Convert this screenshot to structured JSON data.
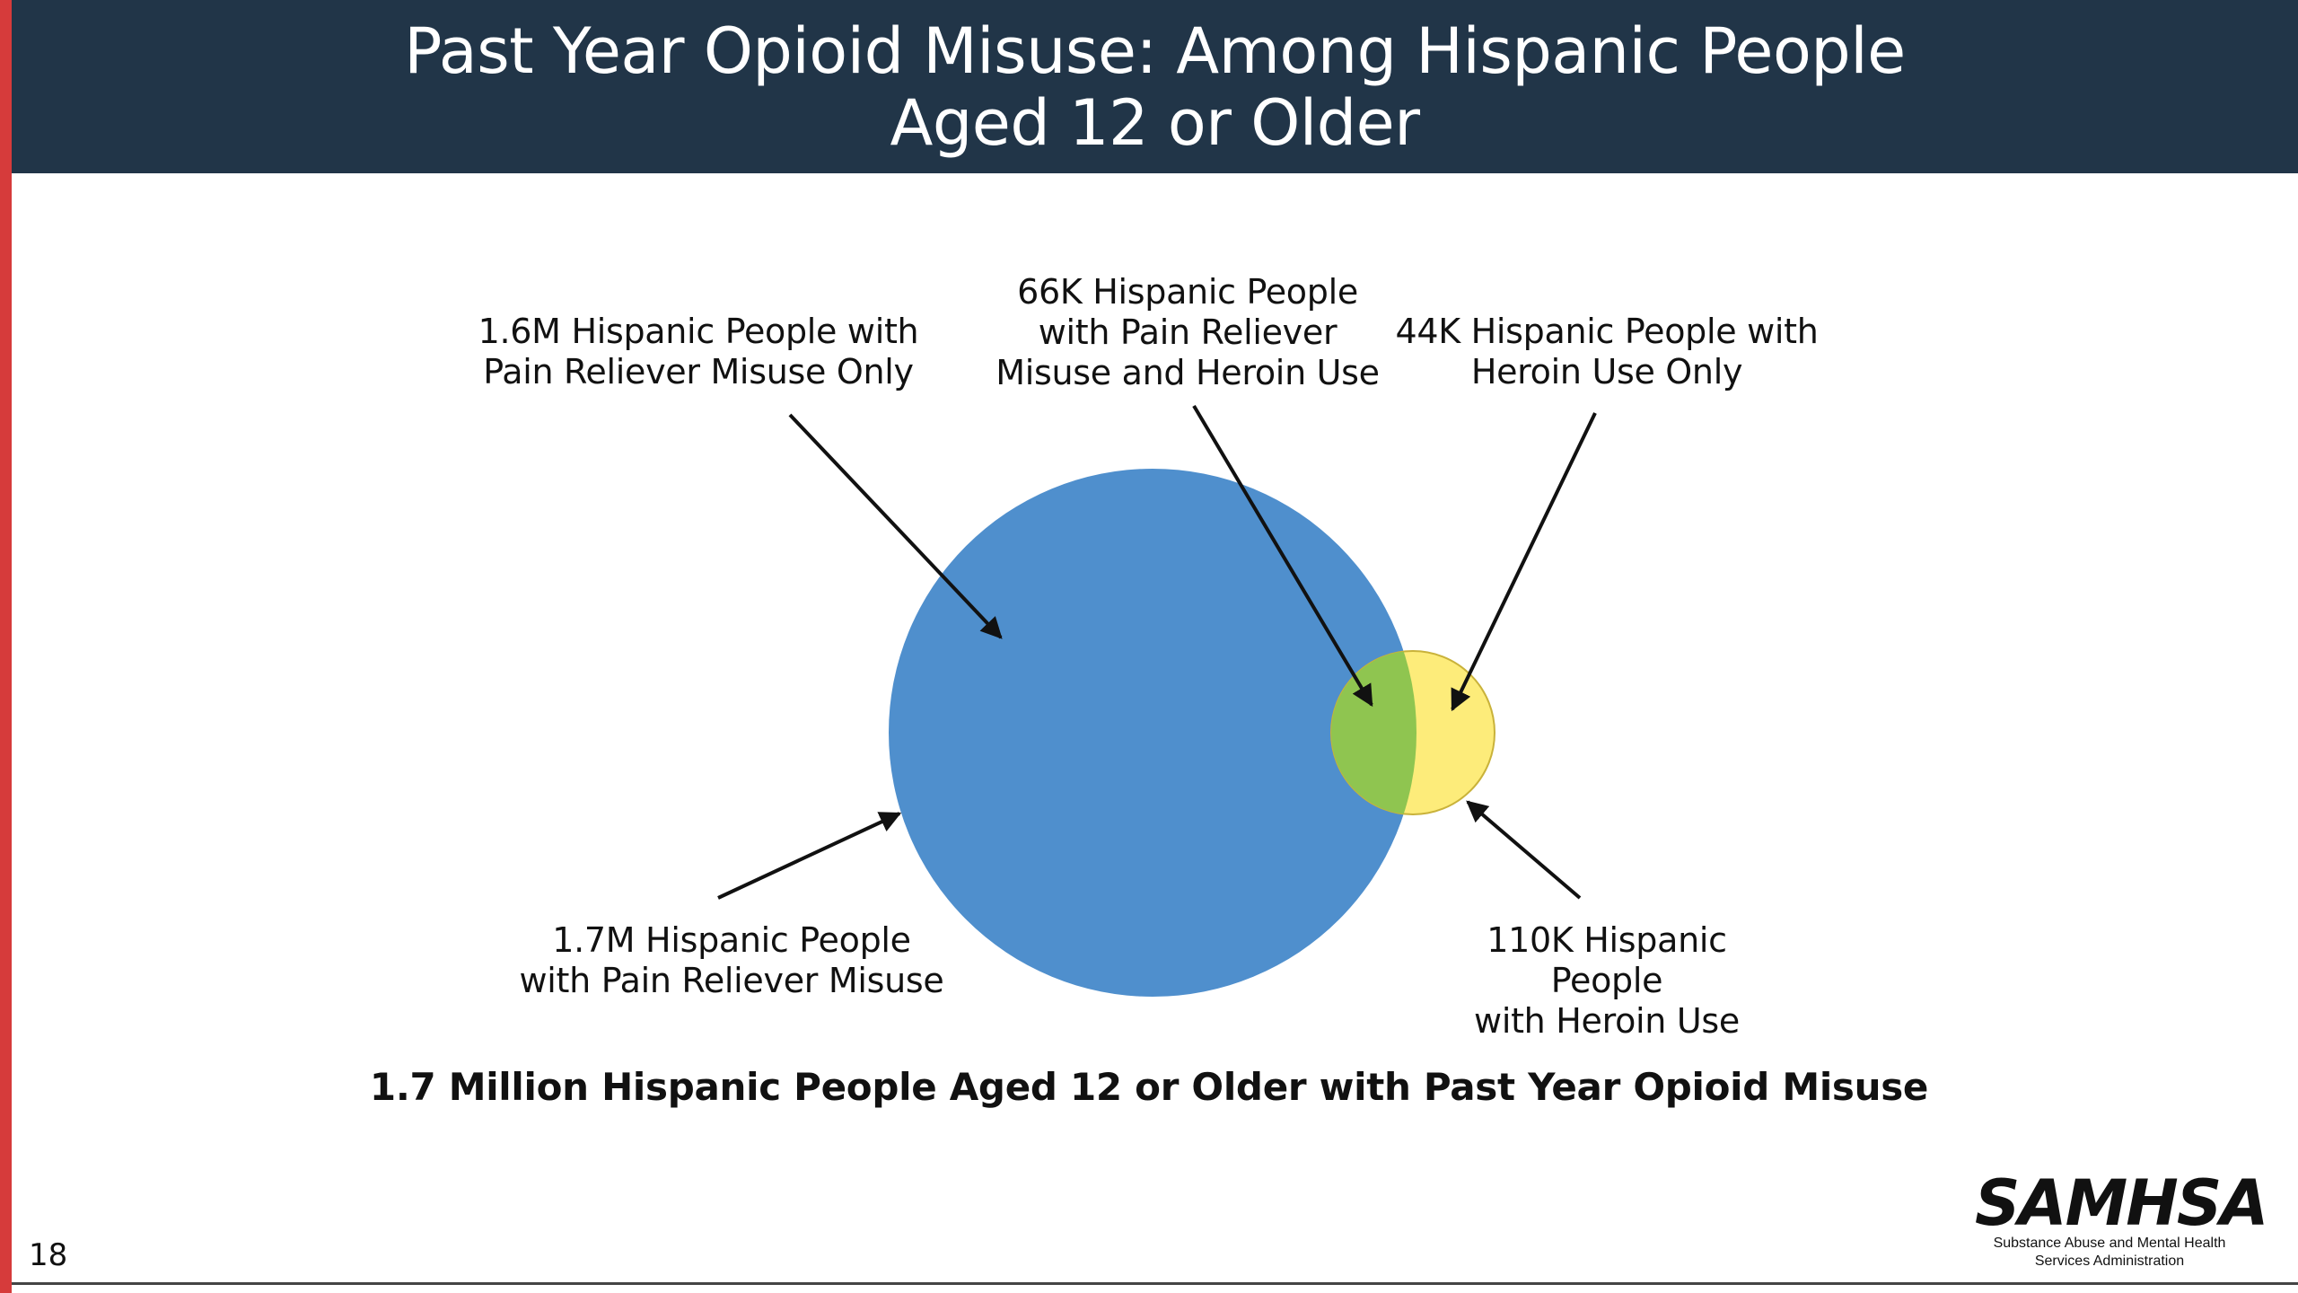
{
  "slide": {
    "title": "Past Year Opioid Misuse: Among Hispanic People\nAged 12 or Older",
    "page_number": "18",
    "summary": "1.7 Million Hispanic People Aged 12 or Older with Past Year Opioid Misuse"
  },
  "venn": {
    "sets": [
      {
        "name": "Pain Reliever Misuse",
        "color": "#4f8fcd"
      },
      {
        "name": "Heroin Use",
        "color": "#fdec7a"
      }
    ],
    "intersection_color": "#8fc550",
    "labels": {
      "pain_only": "1.6M Hispanic People with\nPain Reliever Misuse Only",
      "both": "66K Hispanic People\nwith Pain Reliever\nMisuse and Heroin Use",
      "heroin_only": "44K Hispanic People with\nHeroin Use Only",
      "pain_total": "1.7M Hispanic People\nwith Pain Reliever Misuse",
      "heroin_total": "110K Hispanic People\nwith Heroin Use"
    }
  },
  "logo": {
    "name": "SAMHSA",
    "subtitle": "Substance Abuse and Mental Health\nServices Administration"
  },
  "colors": {
    "header_bg": "#213548",
    "accent_bar": "#d63b3b"
  }
}
